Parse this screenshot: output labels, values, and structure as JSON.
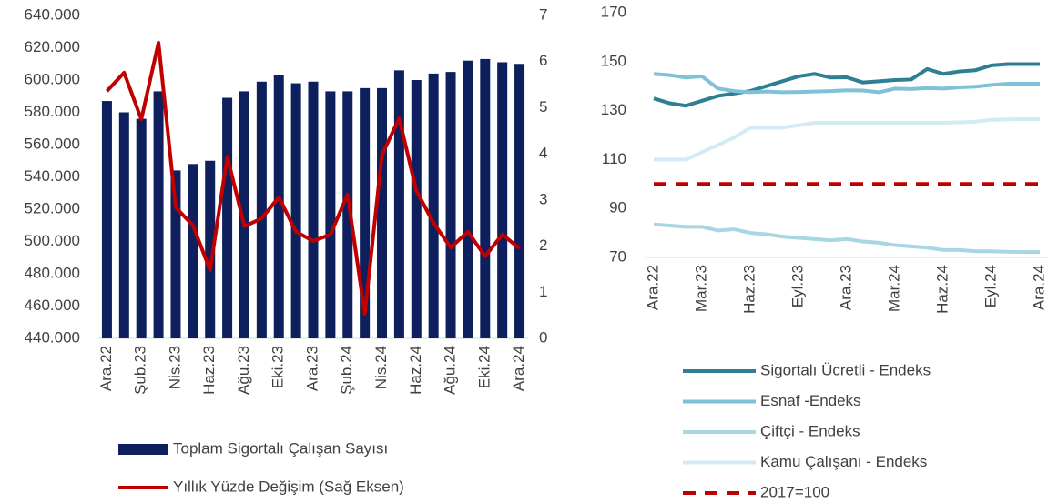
{
  "charts": [
    {
      "type": "bar",
      "categories": [
        "Ara.22",
        null,
        "Şub.23",
        null,
        "Nis.23",
        null,
        "Haz.23",
        null,
        "Ağu.23",
        null,
        "Eki.23",
        null,
        "Ara.23",
        null,
        "Şub.24",
        null,
        "Nis.24",
        null,
        "Haz.24",
        null,
        "Ağu.24",
        null,
        "Eki.24",
        null,
        "Ara.24"
      ],
      "series": [
        {
          "name": "Toplam Sigortalı Çalışan Sayısı",
          "type": "bar",
          "color": "#0d1f5c",
          "values": [
            587000,
            580000,
            576000,
            593000,
            544000,
            548000,
            550000,
            589000,
            593000,
            599000,
            603000,
            598000,
            599000,
            593000,
            593000,
            595000,
            595000,
            606000,
            600000,
            604000,
            605000,
            612000,
            613000,
            611000,
            610000
          ]
        },
        {
          "name": "Yıllık Yüzde Değişim (Sağ Eksen)",
          "type": "line",
          "axis": "y2",
          "color": "#c00000",
          "values": [
            5.36,
            5.76,
            4.75,
            6.41,
            2.84,
            2.45,
            1.48,
            3.94,
            2.43,
            2.6,
            3.06,
            2.31,
            2.11,
            2.25,
            3.12,
            0.53,
            3.98,
            4.77,
            3.2,
            2.5,
            1.97,
            2.31,
            1.78,
            2.25,
            1.95
          ]
        }
      ],
      "ylim": [
        440000,
        640000
      ],
      "yticks": [
        {
          "value": 440000,
          "label": "440.000"
        },
        {
          "value": 460000,
          "label": "460.000"
        },
        {
          "value": 480000,
          "label": "480.000"
        },
        {
          "value": 500000,
          "label": "500.000"
        },
        {
          "value": 520000,
          "label": "520.000"
        },
        {
          "value": 540000,
          "label": "540.000"
        },
        {
          "value": 560000,
          "label": "560.000"
        },
        {
          "value": 580000,
          "label": "580.000"
        },
        {
          "value": 600000,
          "label": "600.000"
        },
        {
          "value": 620000,
          "label": "620.000"
        },
        {
          "value": 640000,
          "label": "640.000"
        }
      ],
      "y2lim": [
        0,
        7
      ],
      "y2ticks": [
        0,
        1,
        2,
        3,
        4,
        5,
        6,
        7
      ],
      "grid": false,
      "legend": "bottom"
    },
    {
      "type": "line",
      "categories": [
        "Ara.22",
        null,
        null,
        "Mar.23",
        null,
        null,
        "Haz.23",
        null,
        null,
        "Eyl.23",
        null,
        null,
        "Ara.23",
        null,
        null,
        "Mar.24",
        null,
        null,
        "Haz.24",
        null,
        null,
        "Eyl.24",
        null,
        null,
        "Ara.24"
      ],
      "series": [
        {
          "name": "Sigortalı Ücretli - Endeks",
          "color": "#2e7f93",
          "values": [
            135,
            133,
            132,
            134,
            136,
            137,
            138,
            140,
            142,
            144,
            145,
            143.5,
            143.6,
            141.5,
            142,
            142.5,
            142.7,
            147,
            145,
            146,
            146.5,
            148.5,
            149,
            149,
            149
          ]
        },
        {
          "name": "Esnaf -Endeks",
          "color": "#7fc1d6",
          "values": [
            145,
            144.5,
            143.5,
            144,
            139,
            138,
            137.5,
            137.8,
            137.5,
            137.6,
            137.8,
            138,
            138.3,
            138.2,
            137.5,
            139,
            138.8,
            139.2,
            139,
            139.5,
            139.8,
            140.5,
            141,
            141,
            141
          ]
        },
        {
          "name": "Çiftçi - Endeks",
          "color": "#a8d6e4",
          "values": [
            83.5,
            83,
            82.5,
            82.5,
            81,
            81.5,
            80,
            79.5,
            78.5,
            78,
            77.5,
            77,
            77.5,
            76.5,
            76,
            75,
            74.5,
            74,
            73,
            73,
            72.5,
            72.5,
            72.3,
            72.2,
            72.2
          ]
        },
        {
          "name": "Kamu Çalışanı - Endeks",
          "color": "#d3ebf3",
          "values": [
            110,
            110,
            110,
            113,
            116,
            119,
            123,
            123,
            123,
            124,
            125,
            125,
            125,
            125,
            125,
            125,
            125,
            125,
            125,
            125.2,
            125.5,
            126.2,
            126.4,
            126.5,
            126.5
          ]
        },
        {
          "name": "2017=100",
          "color": "#c00000",
          "dashed": true,
          "values": [
            100,
            100,
            100,
            100,
            100,
            100,
            100,
            100,
            100,
            100,
            100,
            100,
            100,
            100,
            100,
            100,
            100,
            100,
            100,
            100,
            100,
            100,
            100,
            100,
            100
          ]
        }
      ],
      "ylim": [
        70,
        170
      ],
      "yticks": [
        70,
        90,
        110,
        130,
        150,
        170
      ],
      "grid": false,
      "legend": "bottom"
    }
  ]
}
